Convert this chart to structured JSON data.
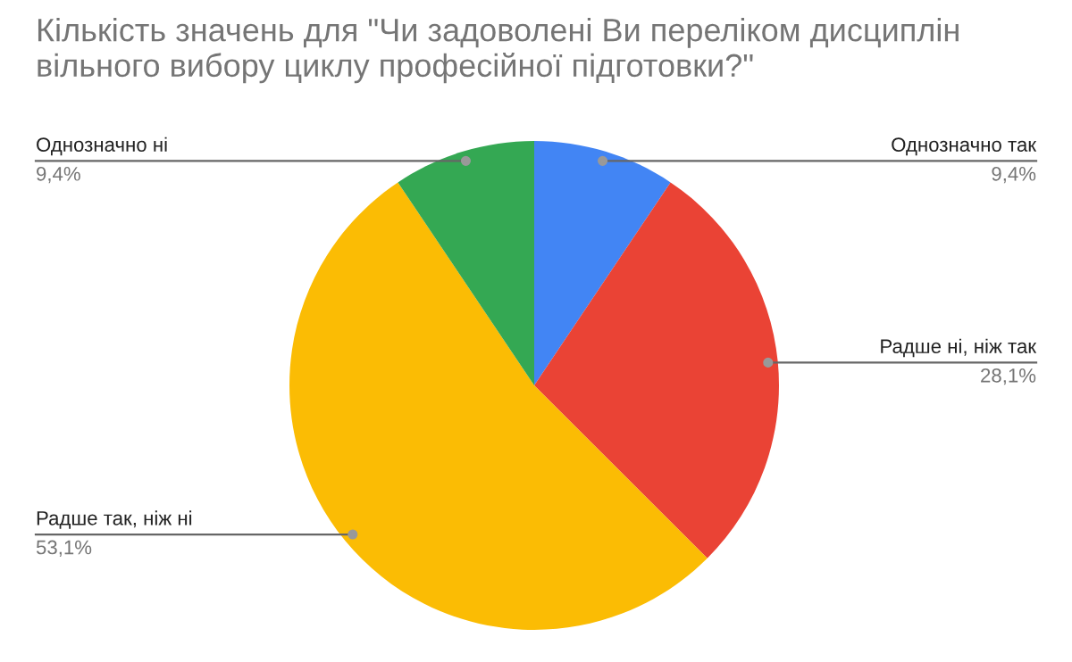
{
  "chart_data": {
    "type": "pie",
    "title": "Кількість значень для \"Чи задоволені Ви переліком дисциплін вільного вибору циклу професійної підготовки?\"",
    "categories": [
      "Однозначно так",
      "Радше ні, ніж так",
      "Радше так, ніж ні",
      "Однозначно ні"
    ],
    "values": [
      9.4,
      28.1,
      53.1,
      9.4
    ],
    "value_labels": [
      "9,4%",
      "28,1%",
      "53,1%",
      "9,4%"
    ],
    "colors": [
      "#4285f4",
      "#ea4335",
      "#fbbc04",
      "#34a853"
    ],
    "legend": false
  }
}
